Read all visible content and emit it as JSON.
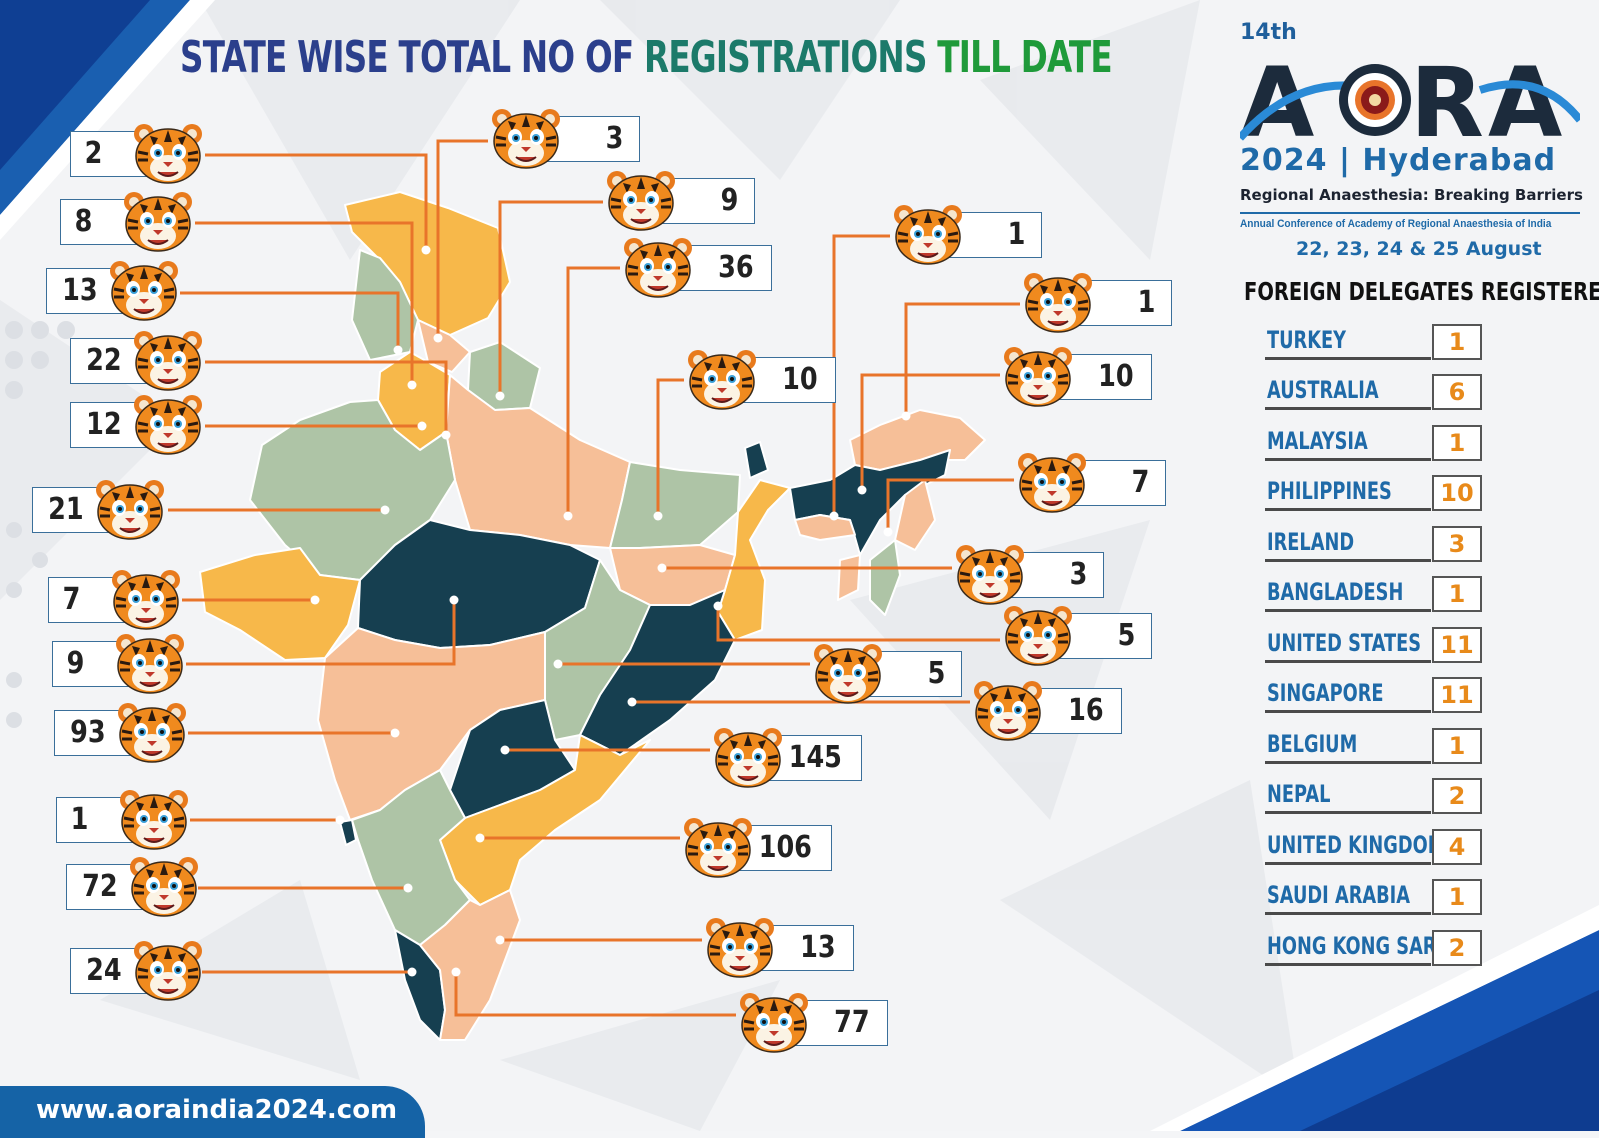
{
  "poster": {
    "title_part1": "STATE WISE TOTAL NO OF",
    "title_part2": "REGISTRATIONS",
    "title_part3": "TILL DATE",
    "colors": {
      "title_blue": "#2b3f8c",
      "title_teal": "#1c7a6a",
      "title_green": "#1f9a3a",
      "map_dark": "#163f50",
      "map_peach": "#f6bf98",
      "map_sage": "#aec4a6",
      "map_yellow": "#f7b84a",
      "connector": "#e8742a",
      "brand_blue": "#1563a6"
    }
  },
  "state_counts": [
    {
      "value": "2"
    },
    {
      "value": "8"
    },
    {
      "value": "13"
    },
    {
      "value": "22"
    },
    {
      "value": "12"
    },
    {
      "value": "21"
    },
    {
      "value": "7"
    },
    {
      "value": "9"
    },
    {
      "value": "93"
    },
    {
      "value": "1"
    },
    {
      "value": "72"
    },
    {
      "value": "24"
    },
    {
      "value": "3"
    },
    {
      "value": "9"
    },
    {
      "value": "36"
    },
    {
      "value": "10"
    },
    {
      "value": "1"
    },
    {
      "value": "1"
    },
    {
      "value": "10"
    },
    {
      "value": "7"
    },
    {
      "value": "3"
    },
    {
      "value": "5"
    },
    {
      "value": "5"
    },
    {
      "value": "16"
    },
    {
      "value": "145"
    },
    {
      "value": "106"
    },
    {
      "value": "13"
    },
    {
      "value": "77"
    }
  ],
  "logo": {
    "edition": "14th",
    "wordmark": "AORA",
    "city": "2024 | Hyderabad",
    "tagline": "Regional Anaesthesia: Breaking Barriers",
    "subtitle": "Annual Conference of Academy of Regional Anaesthesia of India",
    "dates": "22, 23, 24 & 25 August"
  },
  "foreign": {
    "heading": "FOREIGN DELEGATES REGISTERED",
    "rows": [
      {
        "country": "TURKEY",
        "count": "1"
      },
      {
        "country": "AUSTRALIA",
        "count": "6"
      },
      {
        "country": "MALAYSIA",
        "count": "1"
      },
      {
        "country": "PHILIPPINES",
        "count": "10"
      },
      {
        "country": "IRELAND",
        "count": "3"
      },
      {
        "country": "BANGLADESH",
        "count": "1"
      },
      {
        "country": "UNITED STATES",
        "count": "11"
      },
      {
        "country": "SINGAPORE",
        "count": "11"
      },
      {
        "country": "BELGIUM",
        "count": "1"
      },
      {
        "country": "NEPAL",
        "count": "2"
      },
      {
        "country": "UNITED KINGDOM",
        "count": "4"
      },
      {
        "country": "SAUDI ARABIA",
        "count": "1"
      },
      {
        "country": "HONG KONG SAR",
        "count": "2"
      }
    ]
  },
  "footer": {
    "url": "www.aoraindia2024.com"
  }
}
